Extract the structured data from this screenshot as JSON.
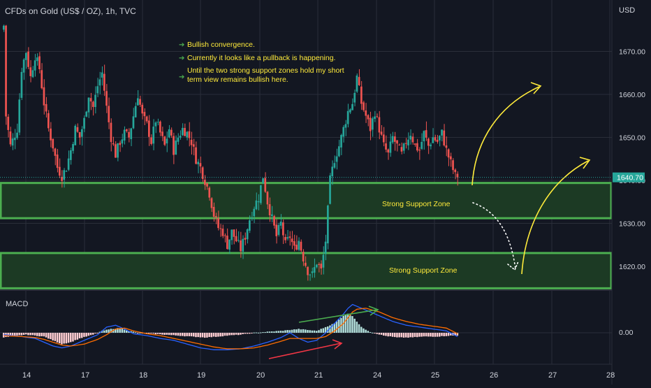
{
  "header": {
    "title": "CFDs on Gold (US$ / OZ), 1h, TVC",
    "currency": "USD"
  },
  "notes": [
    "Bullish convergence.",
    "Currently it looks like a pullback is happening.",
    "Until the two strong support zones hold my short",
    "term view remains bullish here."
  ],
  "price_tag": "1640.70",
  "macd_label": "MACD",
  "macd_zero_label": "0.00",
  "zone_labels": [
    "Strong Support Zone",
    "Strong Support Zone"
  ],
  "colors": {
    "background": "#131722",
    "grid": "#2a2e39",
    "up": "#26a69a",
    "down": "#ef5350",
    "zone_border": "#4caf50",
    "zone_fill": "#1c3a24",
    "annotation": "#ffeb3b",
    "note_arrow": "#4caf50",
    "macd_line": "#2962ff",
    "signal_line": "#ff6d00",
    "hist_pos": "#b2dfdb",
    "hist_neg": "#ffcdd2",
    "trend_up": "#4caf50",
    "trend_red": "#f23645"
  },
  "chart_data": {
    "type": "candlestick",
    "title": "CFDs on Gold (US$ / OZ), 1h, TVC",
    "y_axis_label": "USD",
    "ylim": [
      1614,
      1684
    ],
    "y_ticks": [
      1620,
      1630,
      1640,
      1650,
      1660,
      1670
    ],
    "y_tick_labels": [
      "1620.00",
      "1630.00",
      "1640.00",
      "1650.00",
      "1660.00",
      "1670.00"
    ],
    "x_ticks": [
      "14",
      "17",
      "18",
      "19",
      "20",
      "21",
      "24",
      "25",
      "26",
      "27",
      "28"
    ],
    "last_price": 1640.7,
    "close_path": [
      [
        0,
        1676
      ],
      [
        1,
        1655
      ],
      [
        3,
        1648
      ],
      [
        6,
        1652
      ],
      [
        8,
        1666
      ],
      [
        10,
        1670
      ],
      [
        12,
        1664
      ],
      [
        14,
        1669
      ],
      [
        16,
        1666
      ],
      [
        18,
        1658
      ],
      [
        20,
        1652
      ],
      [
        22,
        1648
      ],
      [
        24,
        1643
      ],
      [
        26,
        1641
      ],
      [
        28,
        1643
      ],
      [
        30,
        1647
      ],
      [
        32,
        1652
      ],
      [
        34,
        1650
      ],
      [
        36,
        1654
      ],
      [
        38,
        1660
      ],
      [
        40,
        1657
      ],
      [
        42,
        1662
      ],
      [
        44,
        1665
      ],
      [
        46,
        1657
      ],
      [
        48,
        1650
      ],
      [
        50,
        1646
      ],
      [
        52,
        1649
      ],
      [
        54,
        1651
      ],
      [
        56,
        1650
      ],
      [
        58,
        1655
      ],
      [
        60,
        1660
      ],
      [
        62,
        1655
      ],
      [
        64,
        1653
      ],
      [
        66,
        1649
      ],
      [
        68,
        1654
      ],
      [
        70,
        1651
      ],
      [
        72,
        1648
      ],
      [
        74,
        1652
      ],
      [
        76,
        1647
      ],
      [
        78,
        1650
      ],
      [
        80,
        1652
      ],
      [
        82,
        1651
      ],
      [
        84,
        1649
      ],
      [
        86,
        1645
      ],
      [
        88,
        1643
      ],
      [
        90,
        1640
      ],
      [
        92,
        1637
      ],
      [
        94,
        1632
      ],
      [
        96,
        1629
      ],
      [
        98,
        1628
      ],
      [
        100,
        1625
      ],
      [
        102,
        1628
      ],
      [
        104,
        1626
      ],
      [
        106,
        1624
      ],
      [
        108,
        1627
      ],
      [
        110,
        1631
      ],
      [
        112,
        1634
      ],
      [
        114,
        1636
      ],
      [
        116,
        1641
      ],
      [
        118,
        1635
      ],
      [
        120,
        1631
      ],
      [
        122,
        1627
      ],
      [
        124,
        1630
      ],
      [
        126,
        1625
      ],
      [
        128,
        1627
      ],
      [
        130,
        1624
      ],
      [
        132,
        1626
      ],
      [
        134,
        1622
      ],
      [
        136,
        1619
      ],
      [
        138,
        1618
      ],
      [
        140,
        1621
      ],
      [
        142,
        1619
      ],
      [
        144,
        1626
      ],
      [
        146,
        1640
      ],
      [
        148,
        1645
      ],
      [
        150,
        1648
      ],
      [
        152,
        1652
      ],
      [
        154,
        1656
      ],
      [
        156,
        1658
      ],
      [
        158,
        1664
      ],
      [
        160,
        1658
      ],
      [
        162,
        1655
      ],
      [
        164,
        1652
      ],
      [
        166,
        1656
      ],
      [
        168,
        1652
      ],
      [
        170,
        1648
      ],
      [
        172,
        1646
      ],
      [
        174,
        1650
      ],
      [
        176,
        1648
      ],
      [
        178,
        1646
      ],
      [
        180,
        1649
      ],
      [
        182,
        1651
      ],
      [
        184,
        1648
      ],
      [
        186,
        1647
      ],
      [
        188,
        1651
      ],
      [
        190,
        1648
      ],
      [
        192,
        1650
      ],
      [
        194,
        1649
      ],
      [
        196,
        1651
      ],
      [
        198,
        1647
      ],
      [
        200,
        1644
      ],
      [
        202,
        1641
      ],
      [
        203,
        1640.7
      ]
    ],
    "support_zones": [
      {
        "label": "Strong Support Zone",
        "low": 1631.2,
        "high": 1639.4
      },
      {
        "label": "Strong Support Zone",
        "low": 1614.9,
        "high": 1623.1
      }
    ],
    "macd": {
      "label": "MACD",
      "zero_label": "0.00",
      "histogram_path": [
        [
          0,
          -5
        ],
        [
          6,
          -3
        ],
        [
          10,
          -2
        ],
        [
          14,
          -3
        ],
        [
          18,
          -4
        ],
        [
          22,
          -8
        ],
        [
          26,
          -12
        ],
        [
          30,
          -10
        ],
        [
          34,
          -6
        ],
        [
          40,
          -2
        ],
        [
          44,
          2
        ],
        [
          48,
          4
        ],
        [
          52,
          5
        ],
        [
          56,
          2
        ],
        [
          60,
          0
        ],
        [
          66,
          -1
        ],
        [
          72,
          -2
        ],
        [
          78,
          -3
        ],
        [
          84,
          -4
        ],
        [
          90,
          -5
        ],
        [
          96,
          -4
        ],
        [
          100,
          -3
        ],
        [
          106,
          -2
        ],
        [
          112,
          0
        ],
        [
          118,
          1
        ],
        [
          124,
          2
        ],
        [
          128,
          3
        ],
        [
          132,
          4
        ],
        [
          136,
          3
        ],
        [
          140,
          2
        ],
        [
          144,
          6
        ],
        [
          148,
          10
        ],
        [
          150,
          14
        ],
        [
          152,
          18
        ],
        [
          154,
          20
        ],
        [
          156,
          18
        ],
        [
          158,
          12
        ],
        [
          160,
          6
        ],
        [
          164,
          1
        ],
        [
          170,
          -3
        ],
        [
          176,
          -5
        ],
        [
          182,
          -5
        ],
        [
          188,
          -4
        ],
        [
          194,
          -4
        ],
        [
          200,
          -3
        ],
        [
          203,
          -3
        ]
      ],
      "macd_path": [
        [
          0,
          -2
        ],
        [
          8,
          -4
        ],
        [
          14,
          -6
        ],
        [
          18,
          -10
        ],
        [
          22,
          -14
        ],
        [
          26,
          -16
        ],
        [
          30,
          -14
        ],
        [
          36,
          -8
        ],
        [
          42,
          -2
        ],
        [
          46,
          6
        ],
        [
          50,
          8
        ],
        [
          54,
          4
        ],
        [
          58,
          -1
        ],
        [
          64,
          -3
        ],
        [
          70,
          -6
        ],
        [
          76,
          -8
        ],
        [
          82,
          -12
        ],
        [
          88,
          -16
        ],
        [
          94,
          -18
        ],
        [
          100,
          -18
        ],
        [
          106,
          -17
        ],
        [
          112,
          -14
        ],
        [
          118,
          -10
        ],
        [
          124,
          -5
        ],
        [
          128,
          0
        ],
        [
          132,
          -6
        ],
        [
          136,
          -10
        ],
        [
          140,
          -8
        ],
        [
          144,
          0
        ],
        [
          148,
          10
        ],
        [
          152,
          20
        ],
        [
          154,
          26
        ],
        [
          156,
          30
        ],
        [
          158,
          28
        ],
        [
          162,
          24
        ],
        [
          168,
          18
        ],
        [
          174,
          12
        ],
        [
          180,
          8
        ],
        [
          186,
          6
        ],
        [
          192,
          4
        ],
        [
          198,
          2
        ],
        [
          203,
          -4
        ]
      ],
      "signal_path": [
        [
          0,
          -3
        ],
        [
          8,
          -4
        ],
        [
          14,
          -5
        ],
        [
          18,
          -7
        ],
        [
          22,
          -10
        ],
        [
          26,
          -13
        ],
        [
          30,
          -14
        ],
        [
          36,
          -12
        ],
        [
          42,
          -7
        ],
        [
          46,
          -2
        ],
        [
          50,
          4
        ],
        [
          54,
          5
        ],
        [
          58,
          2
        ],
        [
          64,
          -1
        ],
        [
          70,
          -3
        ],
        [
          76,
          -6
        ],
        [
          82,
          -9
        ],
        [
          88,
          -12
        ],
        [
          94,
          -15
        ],
        [
          100,
          -17
        ],
        [
          106,
          -17
        ],
        [
          112,
          -16
        ],
        [
          118,
          -13
        ],
        [
          124,
          -9
        ],
        [
          128,
          -6
        ],
        [
          132,
          -6
        ],
        [
          136,
          -6
        ],
        [
          140,
          -6
        ],
        [
          144,
          -4
        ],
        [
          148,
          2
        ],
        [
          152,
          10
        ],
        [
          154,
          16
        ],
        [
          156,
          22
        ],
        [
          158,
          25
        ],
        [
          162,
          26
        ],
        [
          168,
          22
        ],
        [
          174,
          16
        ],
        [
          180,
          12
        ],
        [
          186,
          9
        ],
        [
          192,
          7
        ],
        [
          198,
          5
        ],
        [
          203,
          -1
        ]
      ]
    }
  }
}
